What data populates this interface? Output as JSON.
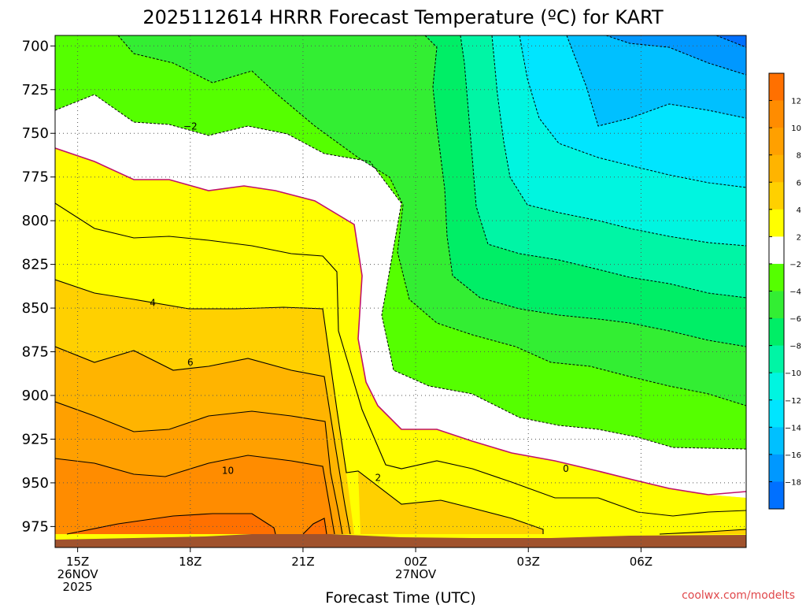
{
  "chart_data": {
    "type": "contour",
    "title": "2025112614 HRRR Forecast Temperature (ºC) for KART",
    "xlabel": "Forecast Time (UTC)",
    "ylabel": "",
    "y_axis": {
      "ticks": [
        "700",
        "725",
        "750",
        "775",
        "800",
        "825",
        "850",
        "875",
        "900",
        "925",
        "950",
        "975"
      ],
      "range_hpa": [
        694,
        987
      ],
      "inverted": true
    },
    "x_axis": {
      "range_hours": [
        14.4,
        32.8
      ],
      "ticks": [
        {
          "hour": 15,
          "label": "15Z",
          "line2": "26NOV",
          "line3": "2025"
        },
        {
          "hour": 18,
          "label": "18Z",
          "line2": "",
          "line3": ""
        },
        {
          "hour": 21,
          "label": "21Z",
          "line2": "",
          "line3": ""
        },
        {
          "hour": 24,
          "label": "00Z",
          "line2": "27NOV",
          "line3": ""
        },
        {
          "hour": 27,
          "label": "03Z",
          "line2": "",
          "line3": ""
        },
        {
          "hour": 30,
          "label": "06Z",
          "line2": "",
          "line3": ""
        }
      ]
    },
    "colorbar": {
      "labels": [
        "12",
        "10",
        "8",
        "6",
        "4",
        "2",
        "−2",
        "−4",
        "−6",
        "−8",
        "−10",
        "−12",
        "−14",
        "−16",
        "−18"
      ],
      "bands": [
        {
          "range": [
            12,
            14
          ],
          "color": "#ff7000"
        },
        {
          "range": [
            10,
            12
          ],
          "color": "#ff8c00"
        },
        {
          "range": [
            8,
            10
          ],
          "color": "#ffa000"
        },
        {
          "range": [
            6,
            8
          ],
          "color": "#ffb400"
        },
        {
          "range": [
            4,
            6
          ],
          "color": "#ffd000"
        },
        {
          "range": [
            2,
            4
          ],
          "color": "#ffff00"
        },
        {
          "range": [
            -2,
            2
          ],
          "color": "#ffffff"
        },
        {
          "range": [
            -4,
            -2
          ],
          "color": "#55ff00"
        },
        {
          "range": [
            -6,
            -4
          ],
          "color": "#33ee33"
        },
        {
          "range": [
            -8,
            -6
          ],
          "color": "#00ee66"
        },
        {
          "range": [
            -10,
            -8
          ],
          "color": "#00f5a5"
        },
        {
          "range": [
            -12,
            -10
          ],
          "color": "#00f5e0"
        },
        {
          "range": [
            -14,
            -12
          ],
          "color": "#00e5ff"
        },
        {
          "range": [
            -16,
            -14
          ],
          "color": "#00c0ff"
        },
        {
          "range": [
            -18,
            -16
          ],
          "color": "#0098ff"
        },
        {
          "range": [
            -20,
            -18
          ],
          "color": "#0070ff"
        }
      ]
    },
    "contour_labels": [
      {
        "value": "−2",
        "hour": 18.0,
        "hpa": 746
      },
      {
        "value": "4",
        "hour": 17.0,
        "hpa": 847
      },
      {
        "value": "6",
        "hour": 18.0,
        "hpa": 881
      },
      {
        "value": "10",
        "hour": 19.0,
        "hpa": 943
      },
      {
        "value": "2",
        "hour": 23.0,
        "hpa": 947
      },
      {
        "value": "0",
        "hour": 28.0,
        "hpa": 942
      }
    ],
    "ground_color": "#a0522d",
    "zero_line_color": "#c0106a",
    "credit": "coolwx.com/modelts"
  }
}
